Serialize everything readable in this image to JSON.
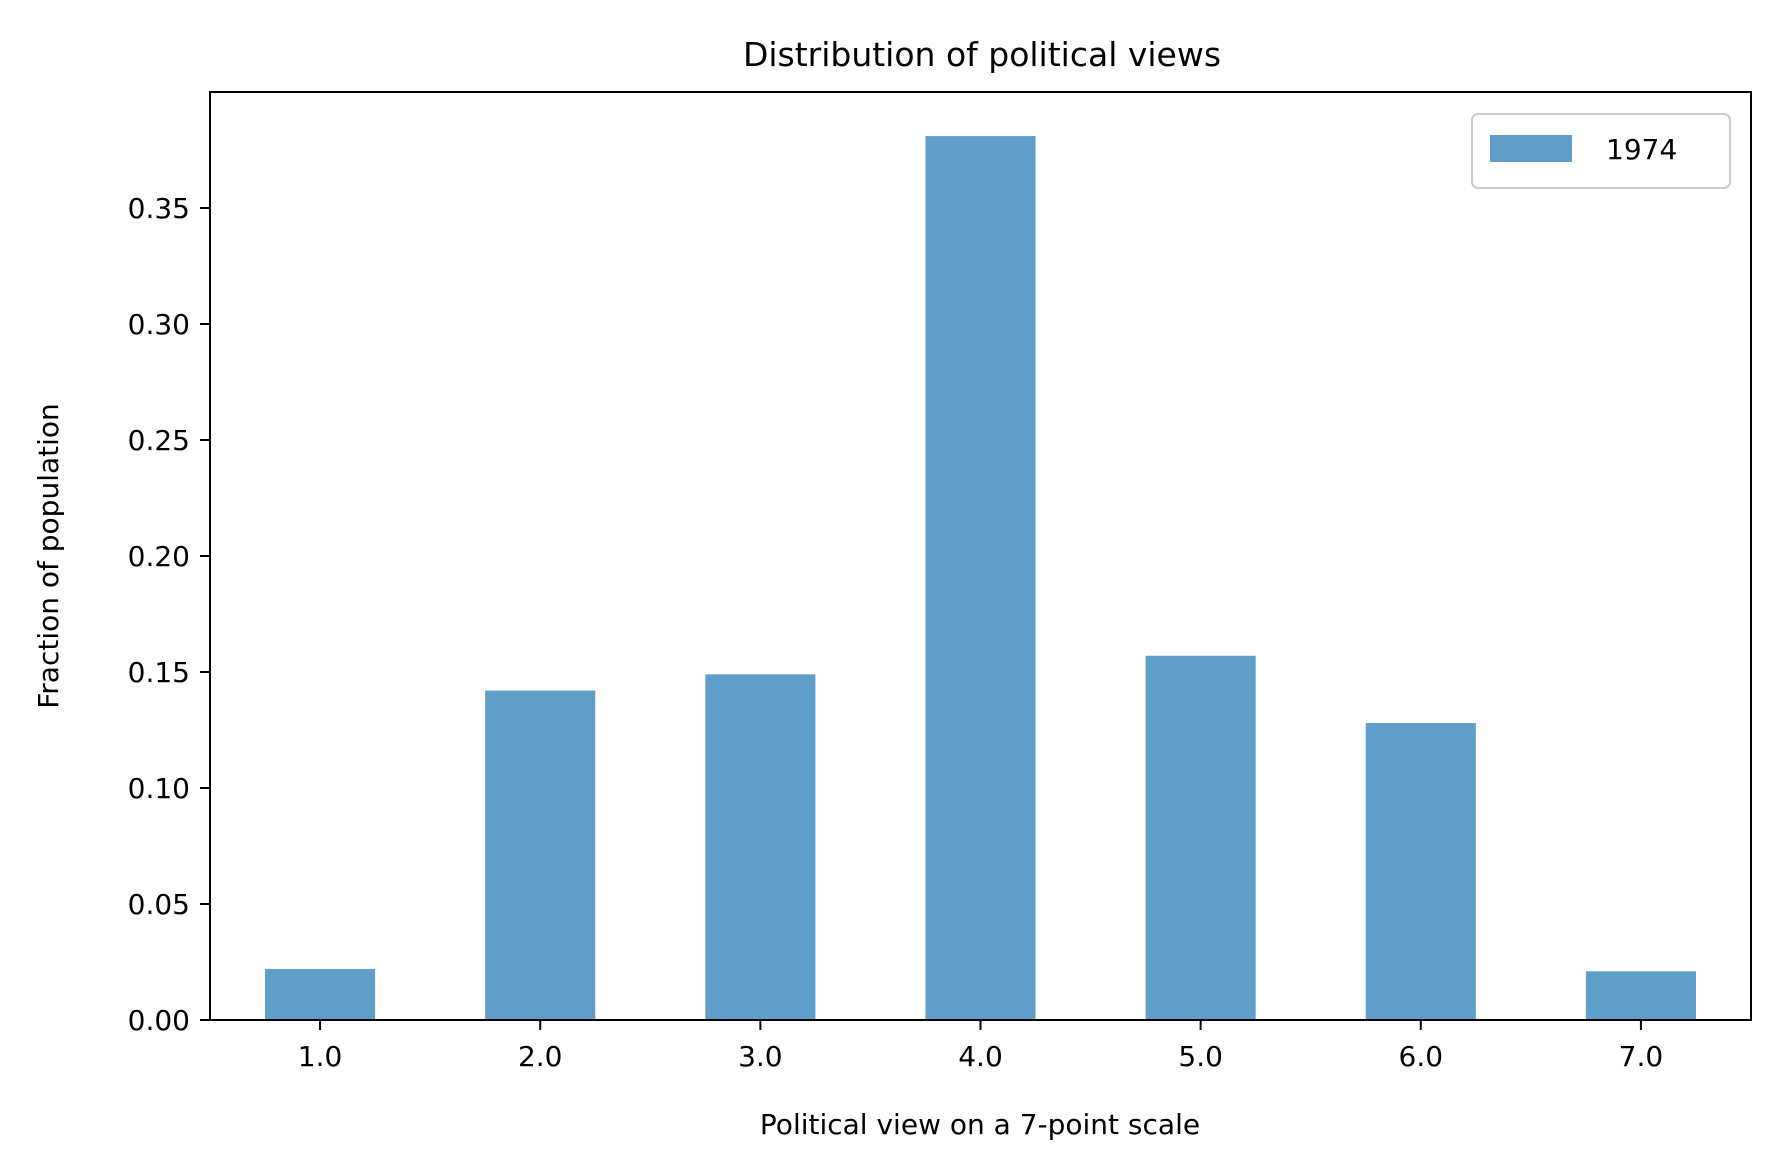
{
  "chart_data": {
    "type": "bar",
    "title": "Distribution of political views",
    "xlabel": "Political view on a 7-point scale",
    "ylabel": "Fraction of population",
    "categories": [
      "1.0",
      "2.0",
      "3.0",
      "4.0",
      "5.0",
      "6.0",
      "7.0"
    ],
    "x": [
      1,
      2,
      3,
      4,
      5,
      6,
      7
    ],
    "series": [
      {
        "name": "1974",
        "values": [
          0.022,
          0.142,
          0.149,
          0.381,
          0.157,
          0.128,
          0.021
        ],
        "color": "#5f9ec9"
      }
    ],
    "xlim": [
      0.5,
      7.5
    ],
    "ylim": [
      0,
      0.4
    ],
    "yticks": [
      0.0,
      0.05,
      0.1,
      0.15,
      0.2,
      0.25,
      0.3,
      0.35
    ],
    "ytick_labels": [
      "0.00",
      "0.05",
      "0.10",
      "0.15",
      "0.20",
      "0.25",
      "0.30",
      "0.35"
    ],
    "grid": false,
    "legend_position": "top-right"
  }
}
